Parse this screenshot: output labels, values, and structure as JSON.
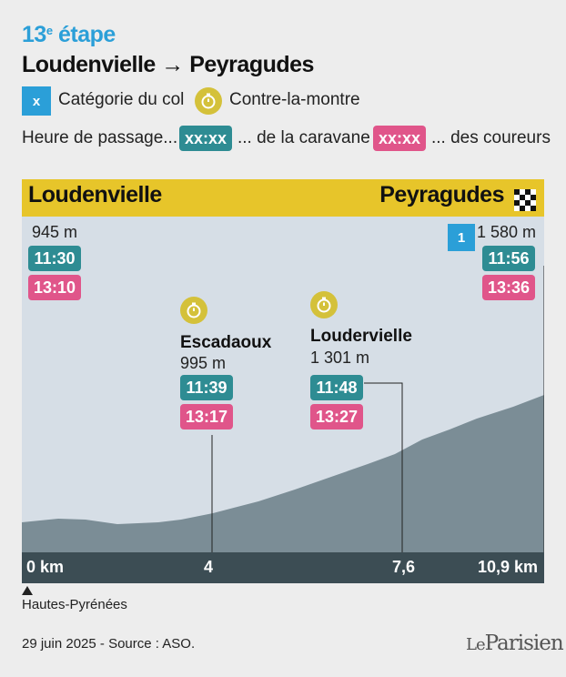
{
  "header": {
    "stage_number": "13",
    "stage_suffix": "e",
    "stage_word": " étape",
    "route": "Loudenvielle → Peyragudes"
  },
  "legend": {
    "category_box": "x",
    "category_label": "Catégorie du col",
    "tt_label": "Contre-la-montre",
    "passage_label": "Heure de passage...",
    "caravan_chip": "xx:xx",
    "caravan_label": "... de la caravane",
    "riders_chip": "xx:xx",
    "riders_label": "... des coureurs"
  },
  "colors": {
    "accent_blue": "#2b9fd8",
    "banner_yellow": "#e7c52a",
    "caravan_teal": "#2e8c93",
    "riders_pink": "#e0558a",
    "tt_gold": "#d4c13a",
    "profile_fill": "#7b8d96",
    "axis_bar": "#3c4d54"
  },
  "profile": {
    "start_name": "Loudenvielle",
    "end_name": "Peyragudes",
    "distance_ticks": [
      "0 km",
      "4",
      "7,6",
      "10,9 km"
    ],
    "region": "Hautes-Pyrénées",
    "points": [
      {
        "km": 0,
        "altitude": "945 m",
        "caravan": "11:30",
        "riders": "13:10"
      },
      {
        "km": 4,
        "name": "Escadaoux",
        "altitude": "995 m",
        "caravan": "11:39",
        "riders": "13:17",
        "icon": "stopwatch-icon"
      },
      {
        "km": 7.6,
        "name": "Loudervielle",
        "altitude": "1 301 m",
        "caravan": "11:48",
        "riders": "13:27",
        "icon": "stopwatch-icon"
      },
      {
        "km": 10.9,
        "category": "1",
        "altitude": "1 580 m",
        "caravan": "11:56",
        "riders": "13:36"
      }
    ]
  },
  "footer": {
    "date_source": "29 juin 2025 - Source : ASO.",
    "logo": "Le Parisien"
  }
}
